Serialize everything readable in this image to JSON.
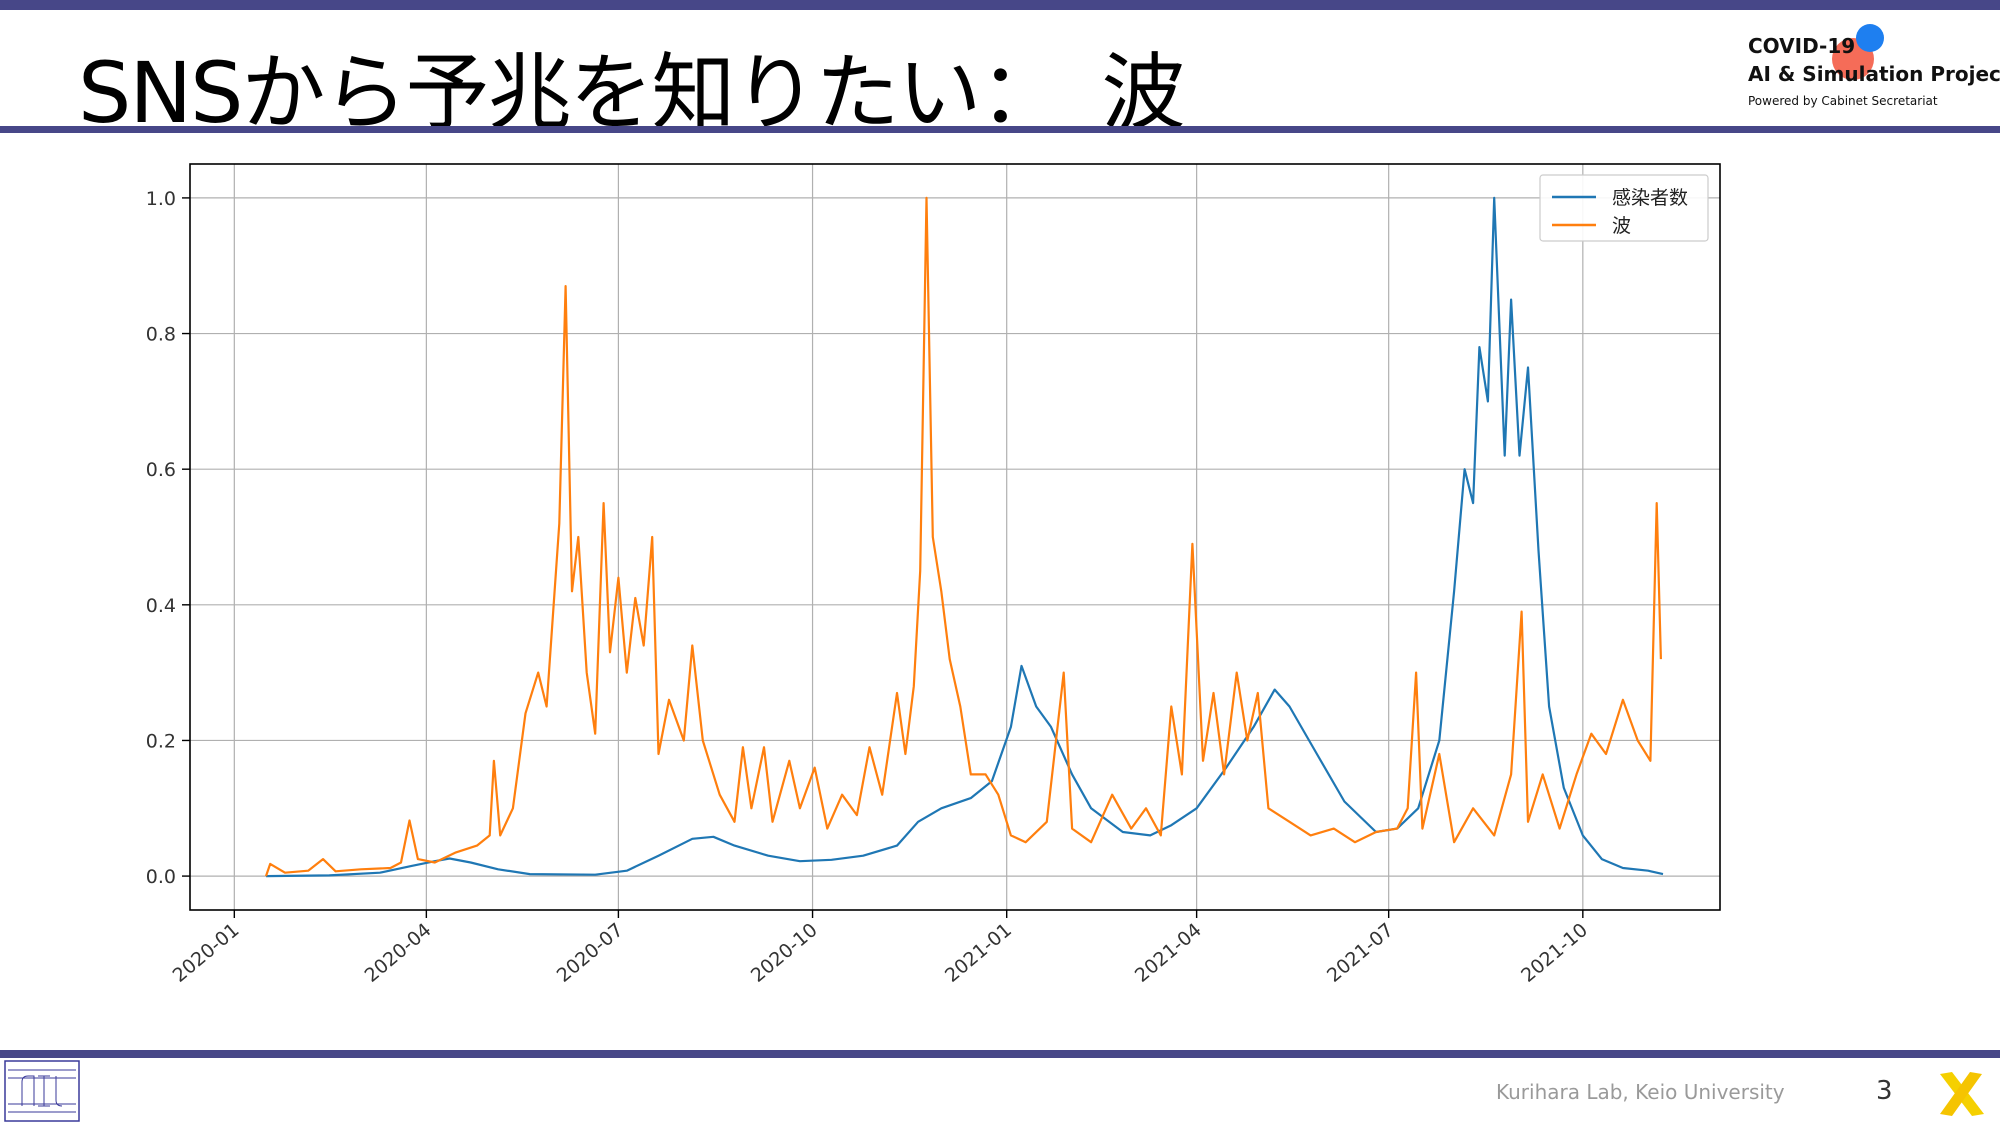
{
  "slide": {
    "title": "SNSから予兆を知りたい：　波",
    "footer": "Kurihara Lab, Keio University",
    "page_number": "3"
  },
  "logo": {
    "line1": "COVID-19",
    "line2": "AI & Simulation Project",
    "line3": "Powered by Cabinet Secretariat"
  },
  "chart_data": {
    "type": "line",
    "title": "",
    "xlabel": "",
    "ylabel": "",
    "ylim": [
      -0.05,
      1.05
    ],
    "xlim": [
      "2019-12-11",
      "2021-12-05"
    ],
    "grid": true,
    "legend_position": "top-right",
    "x_ticks": [
      "2020-01",
      "2020-04",
      "2020-07",
      "2020-10",
      "2021-01",
      "2021-04",
      "2021-07",
      "2021-10"
    ],
    "y_ticks": [
      "0.0",
      "0.2",
      "0.4",
      "0.6",
      "0.8",
      "1.0"
    ],
    "series": [
      {
        "name": "感染者数",
        "color": "#1f77b4",
        "points": [
          [
            "2020-01-16",
            0.0
          ],
          [
            "2020-02-15",
            0.001
          ],
          [
            "2020-03-10",
            0.005
          ],
          [
            "2020-03-25",
            0.015
          ],
          [
            "2020-04-05",
            0.022
          ],
          [
            "2020-04-12",
            0.026
          ],
          [
            "2020-04-22",
            0.02
          ],
          [
            "2020-05-05",
            0.01
          ],
          [
            "2020-05-20",
            0.003
          ],
          [
            "2020-06-20",
            0.002
          ],
          [
            "2020-07-05",
            0.008
          ],
          [
            "2020-07-20",
            0.03
          ],
          [
            "2020-08-05",
            0.055
          ],
          [
            "2020-08-15",
            0.058
          ],
          [
            "2020-08-25",
            0.045
          ],
          [
            "2020-09-10",
            0.03
          ],
          [
            "2020-09-25",
            0.022
          ],
          [
            "2020-10-10",
            0.024
          ],
          [
            "2020-10-25",
            0.03
          ],
          [
            "2020-11-10",
            0.045
          ],
          [
            "2020-11-20",
            0.08
          ],
          [
            "2020-12-01",
            0.1
          ],
          [
            "2020-12-15",
            0.115
          ],
          [
            "2020-12-25",
            0.14
          ],
          [
            "2021-01-03",
            0.22
          ],
          [
            "2021-01-08",
            0.31
          ],
          [
            "2021-01-15",
            0.25
          ],
          [
            "2021-01-22",
            0.22
          ],
          [
            "2021-02-01",
            0.15
          ],
          [
            "2021-02-10",
            0.1
          ],
          [
            "2021-02-25",
            0.065
          ],
          [
            "2021-03-10",
            0.06
          ],
          [
            "2021-03-20",
            0.075
          ],
          [
            "2021-04-01",
            0.1
          ],
          [
            "2021-04-15",
            0.16
          ],
          [
            "2021-04-28",
            0.22
          ],
          [
            "2021-05-08",
            0.275
          ],
          [
            "2021-05-15",
            0.25
          ],
          [
            "2021-05-28",
            0.18
          ],
          [
            "2021-06-10",
            0.11
          ],
          [
            "2021-06-25",
            0.065
          ],
          [
            "2021-07-05",
            0.07
          ],
          [
            "2021-07-15",
            0.1
          ],
          [
            "2021-07-25",
            0.2
          ],
          [
            "2021-08-01",
            0.42
          ],
          [
            "2021-08-06",
            0.6
          ],
          [
            "2021-08-10",
            0.55
          ],
          [
            "2021-08-13",
            0.78
          ],
          [
            "2021-08-17",
            0.7
          ],
          [
            "2021-08-20",
            1.0
          ],
          [
            "2021-08-25",
            0.62
          ],
          [
            "2021-08-28",
            0.85
          ],
          [
            "2021-09-01",
            0.62
          ],
          [
            "2021-09-05",
            0.75
          ],
          [
            "2021-09-10",
            0.48
          ],
          [
            "2021-09-15",
            0.25
          ],
          [
            "2021-09-22",
            0.13
          ],
          [
            "2021-10-01",
            0.06
          ],
          [
            "2021-10-10",
            0.025
          ],
          [
            "2021-10-20",
            0.012
          ],
          [
            "2021-11-01",
            0.008
          ],
          [
            "2021-11-08",
            0.003
          ]
        ]
      },
      {
        "name": "波",
        "color": "#ff7f0e",
        "points": [
          [
            "2020-01-16",
            0.0
          ],
          [
            "2020-01-18",
            0.018
          ],
          [
            "2020-01-25",
            0.005
          ],
          [
            "2020-02-05",
            0.008
          ],
          [
            "2020-02-12",
            0.025
          ],
          [
            "2020-02-18",
            0.007
          ],
          [
            "2020-03-01",
            0.01
          ],
          [
            "2020-03-15",
            0.012
          ],
          [
            "2020-03-20",
            0.02
          ],
          [
            "2020-03-24",
            0.082
          ],
          [
            "2020-03-28",
            0.025
          ],
          [
            "2020-04-05",
            0.02
          ],
          [
            "2020-04-15",
            0.035
          ],
          [
            "2020-04-25",
            0.045
          ],
          [
            "2020-05-01",
            0.06
          ],
          [
            "2020-05-03",
            0.17
          ],
          [
            "2020-05-06",
            0.06
          ],
          [
            "2020-05-12",
            0.1
          ],
          [
            "2020-05-18",
            0.24
          ],
          [
            "2020-05-24",
            0.3
          ],
          [
            "2020-05-28",
            0.25
          ],
          [
            "2020-06-03",
            0.52
          ],
          [
            "2020-06-06",
            0.87
          ],
          [
            "2020-06-09",
            0.42
          ],
          [
            "2020-06-12",
            0.5
          ],
          [
            "2020-06-16",
            0.3
          ],
          [
            "2020-06-20",
            0.21
          ],
          [
            "2020-06-24",
            0.55
          ],
          [
            "2020-06-27",
            0.33
          ],
          [
            "2020-07-01",
            0.44
          ],
          [
            "2020-07-05",
            0.3
          ],
          [
            "2020-07-09",
            0.41
          ],
          [
            "2020-07-13",
            0.34
          ],
          [
            "2020-07-17",
            0.5
          ],
          [
            "2020-07-20",
            0.18
          ],
          [
            "2020-07-25",
            0.26
          ],
          [
            "2020-08-01",
            0.2
          ],
          [
            "2020-08-05",
            0.34
          ],
          [
            "2020-08-10",
            0.2
          ],
          [
            "2020-08-18",
            0.12
          ],
          [
            "2020-08-25",
            0.08
          ],
          [
            "2020-08-29",
            0.19
          ],
          [
            "2020-09-02",
            0.1
          ],
          [
            "2020-09-08",
            0.19
          ],
          [
            "2020-09-12",
            0.08
          ],
          [
            "2020-09-20",
            0.17
          ],
          [
            "2020-09-25",
            0.1
          ],
          [
            "2020-10-02",
            0.16
          ],
          [
            "2020-10-08",
            0.07
          ],
          [
            "2020-10-15",
            0.12
          ],
          [
            "2020-10-22",
            0.09
          ],
          [
            "2020-10-28",
            0.19
          ],
          [
            "2020-11-03",
            0.12
          ],
          [
            "2020-11-10",
            0.27
          ],
          [
            "2020-11-14",
            0.18
          ],
          [
            "2020-11-18",
            0.28
          ],
          [
            "2020-11-21",
            0.45
          ],
          [
            "2020-11-24",
            1.0
          ],
          [
            "2020-11-27",
            0.5
          ],
          [
            "2020-12-01",
            0.42
          ],
          [
            "2020-12-05",
            0.32
          ],
          [
            "2020-12-10",
            0.25
          ],
          [
            "2020-12-15",
            0.15
          ],
          [
            "2020-12-22",
            0.15
          ],
          [
            "2020-12-28",
            0.12
          ],
          [
            "2021-01-03",
            0.06
          ],
          [
            "2021-01-10",
            0.05
          ],
          [
            "2021-01-20",
            0.08
          ],
          [
            "2021-01-28",
            0.3
          ],
          [
            "2021-02-01",
            0.07
          ],
          [
            "2021-02-10",
            0.05
          ],
          [
            "2021-02-20",
            0.12
          ],
          [
            "2021-03-01",
            0.07
          ],
          [
            "2021-03-08",
            0.1
          ],
          [
            "2021-03-15",
            0.06
          ],
          [
            "2021-03-20",
            0.25
          ],
          [
            "2021-03-25",
            0.15
          ],
          [
            "2021-03-30",
            0.49
          ],
          [
            "2021-04-04",
            0.17
          ],
          [
            "2021-04-09",
            0.27
          ],
          [
            "2021-04-14",
            0.15
          ],
          [
            "2021-04-20",
            0.3
          ],
          [
            "2021-04-25",
            0.2
          ],
          [
            "2021-04-30",
            0.27
          ],
          [
            "2021-05-05",
            0.1
          ],
          [
            "2021-05-15",
            0.08
          ],
          [
            "2021-05-25",
            0.06
          ],
          [
            "2021-06-05",
            0.07
          ],
          [
            "2021-06-15",
            0.05
          ],
          [
            "2021-06-25",
            0.065
          ],
          [
            "2021-07-05",
            0.07
          ],
          [
            "2021-07-10",
            0.1
          ],
          [
            "2021-07-14",
            0.3
          ],
          [
            "2021-07-17",
            0.07
          ],
          [
            "2021-07-25",
            0.18
          ],
          [
            "2021-08-01",
            0.05
          ],
          [
            "2021-08-10",
            0.1
          ],
          [
            "2021-08-20",
            0.06
          ],
          [
            "2021-08-28",
            0.15
          ],
          [
            "2021-09-02",
            0.39
          ],
          [
            "2021-09-05",
            0.08
          ],
          [
            "2021-09-12",
            0.15
          ],
          [
            "2021-09-20",
            0.07
          ],
          [
            "2021-09-28",
            0.15
          ],
          [
            "2021-10-05",
            0.21
          ],
          [
            "2021-10-12",
            0.18
          ],
          [
            "2021-10-20",
            0.26
          ],
          [
            "2021-10-27",
            0.2
          ],
          [
            "2021-11-02",
            0.17
          ],
          [
            "2021-11-05",
            0.55
          ],
          [
            "2021-11-07",
            0.32
          ]
        ]
      }
    ]
  }
}
